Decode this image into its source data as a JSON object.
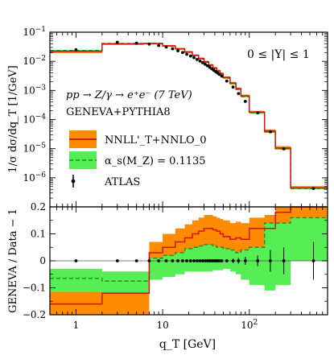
{
  "chart_data": [
    {
      "type": "line",
      "panel": "top",
      "ylabel": "1/σ dσ/dq_T [1/GeV]",
      "xscale": "log",
      "yscale": "log",
      "xlim": [
        0.5,
        800
      ],
      "ylim": [
        1e-07,
        0.1
      ],
      "y_tick_values": [
        1e-07,
        1e-06,
        1e-05,
        0.0001,
        0.001,
        0.01,
        0.1
      ],
      "y_tick_labels": [
        "",
        "10^-6",
        "10^-5",
        "10^-4",
        "10^-3",
        "10^-2",
        "10^-1"
      ],
      "grid": false,
      "annotations": {
        "process": "pp → Z/γ → e⁺e⁻ (7 TeV)",
        "generator": "GENEVA+PYTHIA8",
        "rapidity": "0 ≤ |Y| ≤ 1"
      },
      "legend": {
        "placement": "lower-left",
        "entries": [
          "NNLL'_T+NNLO_0",
          "α_s(M_Z) = 0.1135",
          "ATLAS"
        ]
      },
      "bin_edges": [
        0.5,
        2,
        6,
        10,
        14,
        18,
        22,
        26,
        30,
        34,
        38,
        42,
        46,
        50,
        60,
        70,
        80,
        100,
        150,
        200,
        300,
        800
      ],
      "series": [
        {
          "name": "NNLL'_T+NNLO_0",
          "style": "step",
          "values": [
            0.022,
            0.04,
            0.041,
            0.034,
            0.027,
            0.021,
            0.016,
            0.0125,
            0.0096,
            0.0075,
            0.0059,
            0.0047,
            0.0038,
            0.0028,
            0.0018,
            0.00115,
            0.00065,
            0.00018,
            4e-05,
            1.05e-05,
            4.5e-07
          ],
          "band": {
            "lower": [
              0.019,
              0.036,
              0.038,
              0.032,
              0.025,
              0.0195,
              0.015,
              0.0116,
              0.0089,
              0.0069,
              0.0054,
              0.0043,
              0.0034,
              0.0025,
              0.0016,
              0.00101,
              0.00057,
              0.000158,
              3.5e-05,
              9.2e-06,
              4e-07
            ],
            "upper": [
              0.0245,
              0.0425,
              0.0435,
              0.0365,
              0.029,
              0.0225,
              0.0173,
              0.0135,
              0.0104,
              0.0081,
              0.0064,
              0.0051,
              0.0041,
              0.00305,
              0.00196,
              0.00126,
              0.00072,
              0.0002,
              4.6e-05,
              1.22e-05,
              5.2e-07
            ]
          }
        },
        {
          "name": "α_s(M_Z) = 0.1135",
          "style": "dashed-step",
          "values": [
            0.0235,
            0.041,
            0.041,
            0.0335,
            0.0265,
            0.0205,
            0.0157,
            0.0122,
            0.0093,
            0.0072,
            0.0057,
            0.0045,
            0.0036,
            0.0027,
            0.00172,
            0.0011,
            0.00062,
            0.000172,
            3.85e-05,
            1e-05,
            4.3e-07
          ],
          "band": {
            "lower": [
              0.0225,
              0.0395,
              0.0395,
              0.0323,
              0.0254,
              0.0197,
              0.015,
              0.0117,
              0.0089,
              0.0069,
              0.0054,
              0.0043,
              0.0034,
              0.00258,
              0.00165,
              0.00105,
              0.00059,
              0.000164,
              3.67e-05,
              9.5e-06,
              4.1e-07
            ],
            "upper": [
              0.0245,
              0.0425,
              0.0425,
              0.0347,
              0.0275,
              0.0213,
              0.0164,
              0.0127,
              0.0097,
              0.0075,
              0.0059,
              0.0047,
              0.0038,
              0.00282,
              0.0018,
              0.00115,
              0.00065,
              0.00018,
              4.03e-05,
              1.05e-05,
              4.5e-07
            ]
          }
        }
      ],
      "data_points": {
        "name": "ATLAS",
        "x": [
          1,
          3,
          5,
          7,
          9,
          11,
          13,
          15,
          17,
          19,
          21,
          23,
          25,
          27,
          29,
          31,
          33,
          35,
          37,
          39,
          41,
          43,
          45,
          48,
          55,
          65,
          75,
          90,
          125,
          175,
          250,
          550
        ],
        "y": [
          0.025,
          0.045,
          0.042,
          0.039,
          0.035,
          0.031,
          0.027,
          0.023,
          0.02,
          0.0175,
          0.0152,
          0.0133,
          0.0116,
          0.0102,
          0.009,
          0.0079,
          0.007,
          0.0062,
          0.0055,
          0.0049,
          0.0044,
          0.004,
          0.0036,
          0.0031,
          0.0021,
          0.0013,
          0.00078,
          0.00042,
          0.00017,
          3.8e-05,
          9.8e-06,
          4.3e-07
        ]
      }
    },
    {
      "type": "line",
      "panel": "bottom",
      "xlabel": "q_T [GeV]",
      "ylabel": "GENEVA / Data − 1",
      "xscale": "log",
      "xlim": [
        0.5,
        800
      ],
      "ylim": [
        -0.2,
        0.2
      ],
      "y_tick_values": [
        -0.2,
        -0.1,
        0,
        0.1,
        0.2
      ],
      "y_tick_labels": [
        "−0.2",
        "−0.1",
        "0",
        "0.1",
        "0.2"
      ],
      "x_tick_values": [
        1,
        10,
        100
      ],
      "x_tick_labels": [
        "1",
        "10",
        "10^2"
      ],
      "grid": false,
      "bin_edges": [
        0.5,
        2,
        6,
        7,
        10,
        14,
        18,
        22,
        26,
        30,
        34,
        38,
        42,
        46,
        50,
        60,
        70,
        80,
        100,
        150,
        200,
        300,
        800
      ],
      "series": [
        {
          "name": "NNLL'_T+NNLO_0",
          "style": "step",
          "values": [
            -0.16,
            -0.12,
            -0.12,
            0.03,
            0.05,
            0.07,
            0.085,
            0.1,
            0.11,
            0.12,
            0.12,
            0.115,
            0.11,
            0.1,
            0.09,
            0.08,
            0.085,
            0.08,
            0.12,
            0.12,
            0.18,
            0.2
          ],
          "band": {
            "lower": [
              -0.2,
              -0.2,
              -0.2,
              -0.03,
              -0.02,
              -0.01,
              0.0,
              0.02,
              0.03,
              0.04,
              0.04,
              0.03,
              0.03,
              0.02,
              0.01,
              0.0,
              -0.02,
              -0.05,
              -0.08,
              -0.1,
              -0.06,
              0.0
            ],
            "upper": [
              -0.08,
              -0.04,
              -0.04,
              0.07,
              0.1,
              0.12,
              0.135,
              0.15,
              0.16,
              0.17,
              0.17,
              0.165,
              0.16,
              0.155,
              0.15,
              0.14,
              0.145,
              0.14,
              0.16,
              0.17,
              0.2,
              0.2
            ]
          }
        },
        {
          "name": "α_s(M_Z) = 0.1135",
          "style": "dashed-step",
          "values": [
            -0.065,
            -0.075,
            -0.075,
            0.01,
            0.02,
            0.03,
            0.045,
            0.05,
            0.055,
            0.06,
            0.06,
            0.055,
            0.05,
            0.05,
            0.045,
            0.04,
            0.03,
            0.04,
            0.05,
            0.14,
            0.14,
            0.16
          ],
          "band": {
            "lower": [
              -0.115,
              -0.12,
              -0.12,
              -0.07,
              -0.06,
              -0.05,
              -0.04,
              -0.04,
              -0.04,
              -0.04,
              -0.04,
              -0.035,
              -0.035,
              -0.035,
              -0.03,
              -0.04,
              -0.05,
              -0.07,
              -0.09,
              -0.11,
              -0.09,
              0.0
            ],
            "upper": [
              -0.03,
              -0.04,
              -0.04,
              0.01,
              0.02,
              0.03,
              0.045,
              0.05,
              0.055,
              0.06,
              0.06,
              0.055,
              0.05,
              0.05,
              0.045,
              0.04,
              0.03,
              0.04,
              0.05,
              0.14,
              0.14,
              0.16
            ]
          }
        }
      ],
      "data_points": {
        "name": "ATLAS",
        "x": [
          1,
          3,
          5,
          7,
          9,
          11,
          13,
          15,
          17,
          19,
          21,
          23,
          25,
          27,
          29,
          31,
          33,
          35,
          37,
          39,
          41,
          43,
          45,
          48,
          55,
          65,
          75,
          90,
          125,
          175,
          250,
          550
        ],
        "y": [
          0,
          0,
          0,
          0,
          0,
          0,
          0,
          0,
          0,
          0,
          0,
          0,
          0,
          0,
          0,
          0,
          0,
          0,
          0,
          0,
          0,
          0,
          0,
          0,
          0,
          0,
          0,
          0,
          0,
          0,
          0,
          0
        ],
        "err": [
          0.003,
          0.005,
          0.004,
          0.005,
          0.004,
          0.004,
          0.004,
          0.004,
          0.004,
          0.004,
          0.004,
          0.004,
          0.004,
          0.004,
          0.004,
          0.004,
          0.004,
          0.004,
          0.004,
          0.004,
          0.004,
          0.004,
          0.004,
          0.005,
          0.006,
          0.008,
          0.01,
          0.015,
          0.02,
          0.04,
          0.05,
          0.07
        ]
      }
    }
  ],
  "colors": {
    "central": "#d11313",
    "band_nnll": "#ff8c00",
    "band_alphas": "#55ee55",
    "dashed": "#228b22",
    "data": "#000000"
  }
}
